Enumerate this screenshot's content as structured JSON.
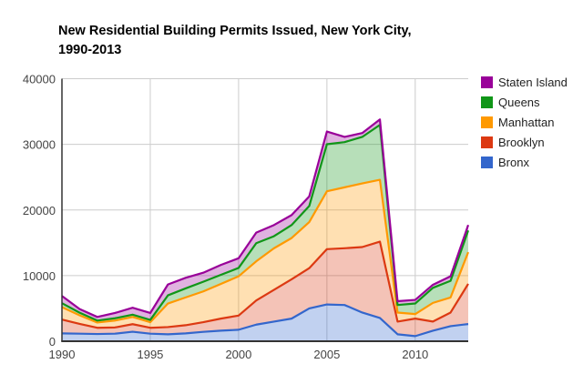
{
  "title": {
    "line1": "New Residential Building Permits Issued, New York City,",
    "line2": "1990-2013"
  },
  "chart_data": {
    "type": "area",
    "stacked": true,
    "title": "New Residential Building Permits Issued, New York City, 1990-2013",
    "xlabel": "",
    "ylabel": "",
    "xlim": [
      1990,
      2013
    ],
    "ylim": [
      0,
      40000
    ],
    "x_ticks": [
      1990,
      1995,
      2000,
      2005,
      2010
    ],
    "y_ticks": [
      0,
      10000,
      20000,
      30000,
      40000
    ],
    "grid": true,
    "legend_position": "right",
    "legend_order_top_to_bottom": [
      "Staten Island",
      "Queens",
      "Manhattan",
      "Brooklyn",
      "Bronx"
    ],
    "x": [
      1990,
      1991,
      1992,
      1993,
      1994,
      1995,
      1996,
      1997,
      1998,
      1999,
      2000,
      2001,
      2002,
      2003,
      2004,
      2005,
      2006,
      2007,
      2008,
      2009,
      2010,
      2011,
      2012,
      2013
    ],
    "series": [
      {
        "name": "Bronx",
        "color": "#3366CC",
        "values": [
          1200,
          1150,
          1100,
          1150,
          1450,
          1150,
          1060,
          1200,
          1430,
          1610,
          1750,
          2530,
          2990,
          3450,
          5000,
          5600,
          5520,
          4370,
          3540,
          1060,
          780,
          1610,
          2300,
          2620
        ]
      },
      {
        "name": "Brooklyn",
        "color": "#DC3912",
        "values": [
          2100,
          1500,
          950,
          950,
          1150,
          900,
          1100,
          1240,
          1470,
          1840,
          2160,
          3680,
          4830,
          5980,
          6130,
          8430,
          8650,
          9980,
          11640,
          1930,
          2670,
          1390,
          2070,
          6120
        ]
      },
      {
        "name": "Manhattan",
        "color": "#FF9900",
        "values": [
          1900,
          1300,
          800,
          1050,
          1100,
          850,
          3590,
          4230,
          4690,
          5290,
          5980,
          5970,
          6340,
          6290,
          7030,
          8820,
          9280,
          9700,
          9420,
          1380,
          690,
          2840,
          2300,
          4830
        ]
      },
      {
        "name": "Queens",
        "color": "#109618",
        "values": [
          600,
          400,
          300,
          350,
          350,
          350,
          1240,
          1380,
          1470,
          1380,
          1280,
          2760,
          1840,
          1980,
          2440,
          7170,
          6890,
          7080,
          8360,
          1150,
          1610,
          2300,
          2530,
          3310
        ]
      },
      {
        "name": "Staten Island",
        "color": "#990099",
        "values": [
          1100,
          550,
          550,
          800,
          1050,
          1050,
          1660,
          1610,
          1380,
          1510,
          1470,
          1610,
          1700,
          1520,
          1470,
          1930,
          790,
          590,
          830,
          580,
          550,
          460,
          690,
          830
        ]
      }
    ],
    "totals_by_year": [
      6900,
      4900,
      3700,
      4300,
      5100,
      4300,
      8650,
      9660,
      10440,
      11630,
      12640,
      16550,
      17700,
      19220,
      22070,
      31950,
      31130,
      31720,
      33790,
      6100,
      6300,
      8600,
      9890,
      17710
    ]
  },
  "style": {
    "background": "#ffffff",
    "axis_line_color": "#333333",
    "grid_line_color": "#cccccc",
    "tick_label_color": "#444444",
    "legend_text_color": "#222222",
    "title_color": "#000000",
    "fill_opacity": 0.3
  }
}
